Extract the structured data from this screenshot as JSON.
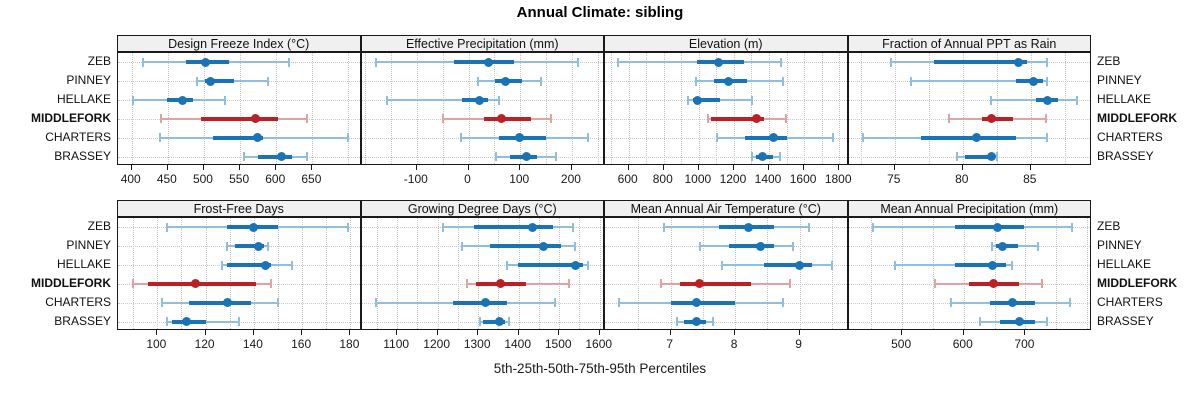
{
  "title": "Annual Climate: sibling",
  "caption": "5th-25th-50th-75th-95th Percentiles",
  "sites": [
    "ZEB",
    "PINNEY",
    "HELLAKE",
    "MIDDLEFORK",
    "CHARTERS",
    "BRASSEY"
  ],
  "highlight_site": "MIDDLEFORK",
  "colors": {
    "series_blue": "#1a73b4",
    "series_blue_light": "#8fbfdd",
    "highlight_red": "#bb2124",
    "highlight_red_light": "#e2a2a3",
    "strip_bg": "#f0f0f0",
    "panel_border": "#1a1a1a",
    "gridline": "#c6c6c6"
  },
  "chart_data": [
    {
      "type": "percentile-dotplot",
      "panel": "Design Freeze Index (°C)",
      "percentiles": [
        5,
        25,
        50,
        75,
        95
      ],
      "xlim": [
        381,
        718
      ],
      "ticks": [
        400,
        450,
        500,
        550,
        600,
        650
      ],
      "grid": [
        400,
        450,
        500,
        550,
        600,
        650,
        700
      ],
      "series": [
        {
          "name": "ZEB",
          "p": [
            416,
            475,
            502,
            535,
            618
          ]
        },
        {
          "name": "PINNEY",
          "p": [
            490,
            502,
            509,
            542,
            588
          ]
        },
        {
          "name": "HELLAKE",
          "p": [
            402,
            449,
            470,
            485,
            529
          ]
        },
        {
          "name": "MIDDLEFORK",
          "p": [
            441,
            496,
            571,
            603,
            643
          ]
        },
        {
          "name": "CHARTERS",
          "p": [
            439,
            513,
            574,
            582,
            699
          ]
        },
        {
          "name": "BRASSEY",
          "p": [
            556,
            575,
            607,
            622,
            643
          ]
        }
      ]
    },
    {
      "type": "percentile-dotplot",
      "panel": "Effective Precipitation (mm)",
      "percentiles": [
        5,
        25,
        50,
        75,
        95
      ],
      "xlim": [
        -207,
        264
      ],
      "ticks": [
        -100,
        0,
        100,
        200
      ],
      "grid": [
        -200,
        -150,
        -100,
        -50,
        0,
        50,
        100,
        150,
        200,
        250
      ],
      "series": [
        {
          "name": "ZEB",
          "p": [
            -178,
            -28,
            38,
            88,
            211
          ]
        },
        {
          "name": "PINNEY",
          "p": [
            19,
            52,
            71,
            104,
            140
          ]
        },
        {
          "name": "HELLAKE",
          "p": [
            -158,
            -12,
            22,
            37,
            58
          ]
        },
        {
          "name": "MIDDLEFORK",
          "p": [
            -49,
            30,
            63,
            120,
            160
          ]
        },
        {
          "name": "CHARTERS",
          "p": [
            -15,
            59,
            99,
            149,
            232
          ]
        },
        {
          "name": "BRASSEY",
          "p": [
            54,
            81,
            112,
            133,
            170
          ]
        }
      ]
    },
    {
      "type": "percentile-dotplot",
      "panel": "Elevation (m)",
      "percentiles": [
        5,
        25,
        50,
        75,
        95
      ],
      "xlim": [
        465,
        1853
      ],
      "ticks": [
        600,
        800,
        1000,
        1200,
        1400,
        1600,
        1800
      ],
      "grid": [
        500,
        600,
        700,
        800,
        900,
        1000,
        1100,
        1200,
        1300,
        1400,
        1500,
        1600,
        1700,
        1800
      ],
      "series": [
        {
          "name": "ZEB",
          "p": [
            540,
            990,
            1112,
            1258,
            1468
          ]
        },
        {
          "name": "PINNEY",
          "p": [
            985,
            1085,
            1170,
            1275,
            1480
          ]
        },
        {
          "name": "HELLAKE",
          "p": [
            940,
            965,
            995,
            1120,
            1305
          ]
        },
        {
          "name": "MIDDLEFORK",
          "p": [
            1050,
            1068,
            1330,
            1370,
            1497
          ]
        },
        {
          "name": "CHARTERS",
          "p": [
            1103,
            1265,
            1427,
            1505,
            1763
          ]
        },
        {
          "name": "BRASSEY",
          "p": [
            1305,
            1327,
            1365,
            1425,
            1465
          ]
        }
      ]
    },
    {
      "type": "percentile-dotplot",
      "panel": "Fraction of Annual PPT as Rain",
      "percentiles": [
        5,
        25,
        50,
        75,
        95
      ],
      "xlim": [
        71.6,
        89.5
      ],
      "ticks": [
        75,
        80,
        85
      ],
      "grid": [
        72.5,
        75,
        77.5,
        80,
        82.5,
        85,
        87.5
      ],
      "series": [
        {
          "name": "ZEB",
          "p": [
            74.7,
            77.9,
            84.1,
            84.7,
            86.2
          ]
        },
        {
          "name": "PINNEY",
          "p": [
            76.2,
            83.9,
            85.2,
            85.9,
            86.2
          ]
        },
        {
          "name": "HELLAKE",
          "p": [
            82.1,
            85.4,
            86.2,
            87.0,
            88.4
          ]
        },
        {
          "name": "MIDDLEFORK",
          "p": [
            79.0,
            81.4,
            82.1,
            83.7,
            86.1
          ]
        },
        {
          "name": "CHARTERS",
          "p": [
            72.7,
            76.9,
            81.0,
            83.9,
            86.2
          ]
        },
        {
          "name": "BRASSEY",
          "p": [
            79.6,
            80.2,
            82.1,
            82.3,
            82.5
          ]
        }
      ]
    },
    {
      "type": "percentile-dotplot",
      "panel": "Frost-Free Days",
      "percentiles": [
        5,
        25,
        50,
        75,
        95
      ],
      "xlim": [
        83.7,
        184.6
      ],
      "ticks": [
        100,
        120,
        140,
        160,
        180
      ],
      "grid": [
        90,
        100,
        110,
        120,
        130,
        140,
        150,
        160,
        170,
        180
      ],
      "series": [
        {
          "name": "ZEB",
          "p": [
            104,
            129,
            140,
            150,
            179
          ]
        },
        {
          "name": "PINNEY",
          "p": [
            129,
            132,
            142,
            144,
            146
          ]
        },
        {
          "name": "HELLAKE",
          "p": [
            127,
            129,
            145,
            147,
            156
          ]
        },
        {
          "name": "MIDDLEFORK",
          "p": [
            90,
            96,
            116,
            141,
            147
          ]
        },
        {
          "name": "CHARTERS",
          "p": [
            102,
            113,
            129,
            139,
            150
          ]
        },
        {
          "name": "BRASSEY",
          "p": [
            104,
            106,
            112,
            120,
            134
          ]
        }
      ]
    },
    {
      "type": "percentile-dotplot",
      "panel": "Growing Degree Days (°C)",
      "percentiles": [
        5,
        25,
        50,
        75,
        95
      ],
      "xlim": [
        1012,
        1613
      ],
      "ticks": [
        1100,
        1200,
        1300,
        1400,
        1500,
        1600
      ],
      "grid": [
        1050,
        1100,
        1150,
        1200,
        1250,
        1300,
        1350,
        1400,
        1450,
        1500,
        1550,
        1600
      ],
      "series": [
        {
          "name": "ZEB",
          "p": [
            1214,
            1290,
            1433,
            1484,
            1535
          ]
        },
        {
          "name": "PINNEY",
          "p": [
            1261,
            1330,
            1461,
            1505,
            1539
          ]
        },
        {
          "name": "HELLAKE",
          "p": [
            1372,
            1398,
            1541,
            1558,
            1572
          ]
        },
        {
          "name": "MIDDLEFORK",
          "p": [
            1273,
            1295,
            1356,
            1418,
            1523
          ]
        },
        {
          "name": "CHARTERS",
          "p": [
            1048,
            1237,
            1317,
            1372,
            1490
          ]
        },
        {
          "name": "BRASSEY",
          "p": [
            1304,
            1311,
            1353,
            1367,
            1376
          ]
        }
      ]
    },
    {
      "type": "percentile-dotplot",
      "panel": "Mean Annual Air Temperature (°C)",
      "percentiles": [
        5,
        25,
        50,
        75,
        95
      ],
      "xlim": [
        5.98,
        9.76
      ],
      "ticks": [
        7,
        8,
        9
      ],
      "grid": [
        6.5,
        7,
        7.5,
        8,
        8.5,
        9,
        9.5
      ],
      "series": [
        {
          "name": "ZEB",
          "p": [
            6.9,
            7.75,
            8.2,
            8.6,
            9.15
          ]
        },
        {
          "name": "PINNEY",
          "p": [
            7.45,
            7.9,
            8.4,
            8.6,
            8.9
          ]
        },
        {
          "name": "HELLAKE",
          "p": [
            7.8,
            8.45,
            9.0,
            9.2,
            9.5
          ]
        },
        {
          "name": "MIDDLEFORK",
          "p": [
            6.85,
            7.15,
            7.45,
            8.25,
            8.85
          ]
        },
        {
          "name": "CHARTERS",
          "p": [
            6.2,
            7.0,
            7.4,
            8.0,
            8.75
          ]
        },
        {
          "name": "BRASSEY",
          "p": [
            7.1,
            7.2,
            7.4,
            7.55,
            7.65
          ]
        }
      ]
    },
    {
      "type": "percentile-dotplot",
      "panel": "Mean Annual Precipitation (mm)",
      "percentiles": [
        5,
        25,
        50,
        75,
        95
      ],
      "xlim": [
        413,
        808
      ],
      "ticks": [
        500,
        600,
        700
      ],
      "grid": [
        450,
        500,
        550,
        600,
        650,
        700,
        750,
        800
      ],
      "series": [
        {
          "name": "ZEB",
          "p": [
            453,
            586,
            655,
            698,
            775
          ]
        },
        {
          "name": "PINNEY",
          "p": [
            645,
            652,
            663,
            688,
            720
          ]
        },
        {
          "name": "HELLAKE",
          "p": [
            488,
            586,
            647,
            669,
            679
          ]
        },
        {
          "name": "MIDDLEFORK",
          "p": [
            553,
            608,
            649,
            690,
            727
          ]
        },
        {
          "name": "CHARTERS",
          "p": [
            579,
            643,
            679,
            716,
            772
          ]
        },
        {
          "name": "BRASSEY",
          "p": [
            627,
            658,
            690,
            716,
            735
          ]
        }
      ]
    }
  ]
}
